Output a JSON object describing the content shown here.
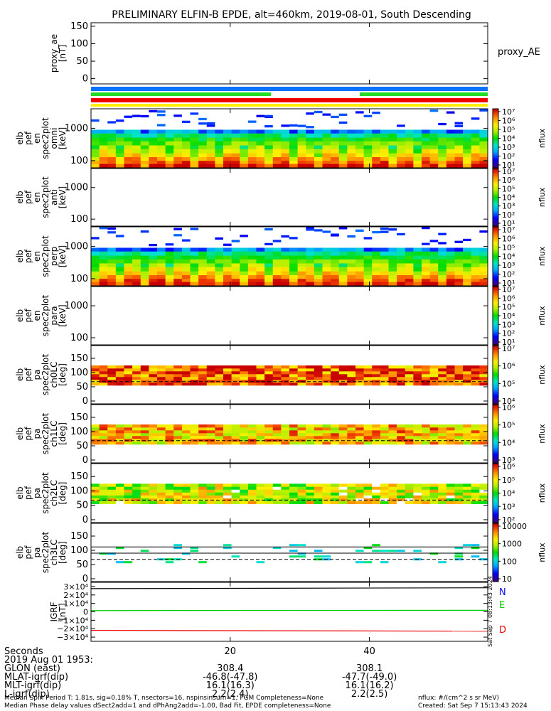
{
  "title": "PRELIMINARY ELFIN-B EPDE, alt=460km, 2019-08-01, South Descending",
  "colors": {
    "bar_blue": "#0a72ff",
    "bar_green": "#22dd22",
    "bar_red": "#ee0000",
    "bar_yellow": "#ffee00",
    "N": "#0000ff",
    "E": "#00cc00",
    "D": "#ee0000"
  },
  "x_ticks": [
    "20",
    "40"
  ],
  "x_tick_values": [
    20,
    40
  ],
  "x_range": [
    0,
    57
  ],
  "panels": [
    {
      "id": "proxy_ae",
      "ylabel": [
        "proxy_ae",
        "[nT]"
      ],
      "side_label": "proxy_AE",
      "ticks": [
        "150",
        "100",
        "50",
        "0"
      ],
      "tick_values": [
        150,
        100,
        50,
        0
      ],
      "yrange": [
        -15,
        160
      ]
    },
    {
      "id": "elb_pef_en_spec_omni",
      "ylabel": [
        "elb",
        "pef",
        "en",
        "spec2plot",
        "omni",
        "[keV]"
      ],
      "ticks": [
        "1000",
        "100"
      ],
      "tick_values": [
        1000,
        100
      ],
      "ylog": true,
      "yrange": [
        60,
        4000
      ],
      "cb_ticks": [
        "10⁷",
        "10⁶",
        "10⁵",
        "10⁴",
        "10³",
        "10²",
        "10¹"
      ],
      "cb_label": "nflux"
    },
    {
      "id": "elb_pef_en_spec_anti",
      "ylabel": [
        "elb",
        "pef",
        "en",
        "spec2plot",
        "anti",
        "[keV]"
      ],
      "ticks": [
        "1000",
        "100"
      ],
      "tick_values": [
        1000,
        100
      ],
      "ylog": true,
      "yrange": [
        60,
        4000
      ],
      "cb_ticks": [
        "10⁷",
        "10⁶",
        "10⁵",
        "10⁴",
        "10³",
        "10²",
        "10¹"
      ],
      "cb_label": "nflux"
    },
    {
      "id": "elb_pef_en_spec_perp",
      "ylabel": [
        "elb",
        "pef",
        "en",
        "spec2plot",
        "perp",
        "[keV]"
      ],
      "ticks": [
        "1000",
        "100"
      ],
      "tick_values": [
        1000,
        100
      ],
      "ylog": true,
      "yrange": [
        60,
        4000
      ],
      "cb_ticks": [
        "10⁷",
        "10⁶",
        "10⁵",
        "10⁴",
        "10³",
        "10²",
        "10¹"
      ],
      "cb_label": "nflux"
    },
    {
      "id": "elb_pef_en_spec_para",
      "ylabel": [
        "elb",
        "pef",
        "en",
        "spec2plot",
        "para",
        "[keV]"
      ],
      "ticks": [
        "1000",
        "100"
      ],
      "tick_values": [
        1000,
        100
      ],
      "ylog": true,
      "yrange": [
        60,
        4000
      ],
      "cb_ticks": [
        "10⁷",
        "10⁶",
        "10⁵",
        "10⁴",
        "10³",
        "10²",
        "10¹"
      ],
      "cb_label": "nflux"
    },
    {
      "id": "elb_pef_pa_ch0LC",
      "ylabel": [
        "elb",
        "pef",
        "pa",
        "spec2plot",
        "ch0LC",
        "[deg]"
      ],
      "ticks": [
        "150",
        "100",
        "50",
        "0"
      ],
      "tick_values": [
        150,
        100,
        50,
        0
      ],
      "yrange": [
        -10,
        195
      ],
      "cb_ticks": [
        "10⁷",
        "10⁶",
        "10⁵",
        "10⁴"
      ],
      "cb_label": "nflux"
    },
    {
      "id": "elb_pef_pa_ch1LC",
      "ylabel": [
        "elb",
        "pef",
        "pa",
        "spec2plot",
        "ch1LC",
        "[deg]"
      ],
      "ticks": [
        "150",
        "100",
        "50",
        "0"
      ],
      "tick_values": [
        150,
        100,
        50,
        0
      ],
      "yrange": [
        -10,
        195
      ],
      "cb_ticks": [
        "10⁶",
        "10⁵",
        "10⁴",
        "10³"
      ],
      "cb_label": "nflux"
    },
    {
      "id": "elb_pef_pa_ch2LC",
      "ylabel": [
        "elb",
        "pef",
        "pa",
        "spec2plot",
        "ch2LC",
        "[deg]"
      ],
      "ticks": [
        "150",
        "100",
        "50",
        "0"
      ],
      "tick_values": [
        150,
        100,
        50,
        0
      ],
      "yrange": [
        -10,
        195
      ],
      "cb_ticks": [
        "10⁶",
        "10⁵",
        "10⁴",
        "10³",
        "10²"
      ],
      "cb_label": "nflux"
    },
    {
      "id": "elb_pef_pa_ch3LC",
      "ylabel": [
        "elb",
        "pef",
        "pa",
        "spec2plot",
        "ch3LC",
        "[deg]"
      ],
      "ticks": [
        "150",
        "100",
        "50",
        "0"
      ],
      "tick_values": [
        150,
        100,
        50,
        0
      ],
      "yrange": [
        -10,
        195
      ],
      "cb_ticks": [
        "10000",
        "1000",
        "100",
        "10"
      ],
      "cb_label": "nflux"
    },
    {
      "id": "igrf",
      "ylabel": [
        "IGRF",
        "[nT]"
      ],
      "ticks": [
        "3×10⁴",
        "2×10⁴",
        "1×10⁴",
        "0",
        "−1×10⁴",
        "−2×10⁴",
        "−3×10⁴"
      ],
      "tick_values": [
        30000,
        20000,
        10000,
        0,
        -10000,
        -20000,
        -30000
      ],
      "yrange": [
        -35000,
        35000
      ],
      "legend": [
        "N",
        "E",
        "D"
      ],
      "series": [
        {
          "name": "N",
          "x": [
            0,
            57
          ],
          "values": [
            27500,
            28500
          ]
        },
        {
          "name": "E",
          "x": [
            0,
            57
          ],
          "values": [
            1500,
            1800
          ]
        },
        {
          "name": "D",
          "x": [
            0,
            57
          ],
          "values": [
            -22000,
            -23000
          ]
        }
      ]
    }
  ],
  "stamp": "Sat Sep  7 08:13:43 2024",
  "footer": {
    "row_labels": [
      "Seconds",
      "2019 Aug 01 1953:",
      "GLON (east)",
      "MLAT-igrf(dip)",
      "MLT-igrf(dip)",
      "L-igrf(dip)"
    ],
    "col20": [
      "",
      "",
      "308.4",
      "-46.8(-47.8)",
      "16.1(16.3)",
      "2.2(2.4)"
    ],
    "col40": [
      "",
      "",
      "308.1",
      "-47.7(-49.0)",
      "16.1(16.2)",
      "2.2(2.5)"
    ],
    "line1": "Median Spin Period T: 1.81s, sig=0.18% T, nsectors=16, nspinsinsum=1, FGM Completeness=None",
    "line2": "Median Phase delay values dSect2add=1 and dPhAng2add=-1.00, Bad Fit, EPDE completeness=None",
    "units": "nflux: #/(cm^2 s sr MeV)",
    "created": "Created: Sat Sep  7 15:13:43 2024"
  },
  "chart_data": {
    "type": "heatmap",
    "title": "PRELIMINARY ELFIN-B EPDE, alt=460km, 2019-08-01, South Descending",
    "x_ticks": [
      "20",
      "40"
    ],
    "panels": [
      "proxy_ae",
      "elb pef en spec2plot omni",
      "elb pef en spec2plot anti",
      "elb pef en spec2plot perp",
      "elb pef en spec2plot para",
      "elb pef pa spec2plot ch0LC",
      "elb pef pa spec2plot ch1LC",
      "elb pef pa spec2plot ch2LC",
      "elb pef pa spec2plot ch3LC",
      "IGRF"
    ],
    "colorbar_label": "nflux",
    "legend": [
      "N",
      "E",
      "D"
    ],
    "igrf_series": [
      {
        "name": "N",
        "values": [
          27500,
          28500
        ]
      },
      {
        "name": "E",
        "values": [
          1500,
          1800
        ]
      },
      {
        "name": "D",
        "values": [
          -22000,
          -23000
        ]
      }
    ],
    "grid": false
  }
}
